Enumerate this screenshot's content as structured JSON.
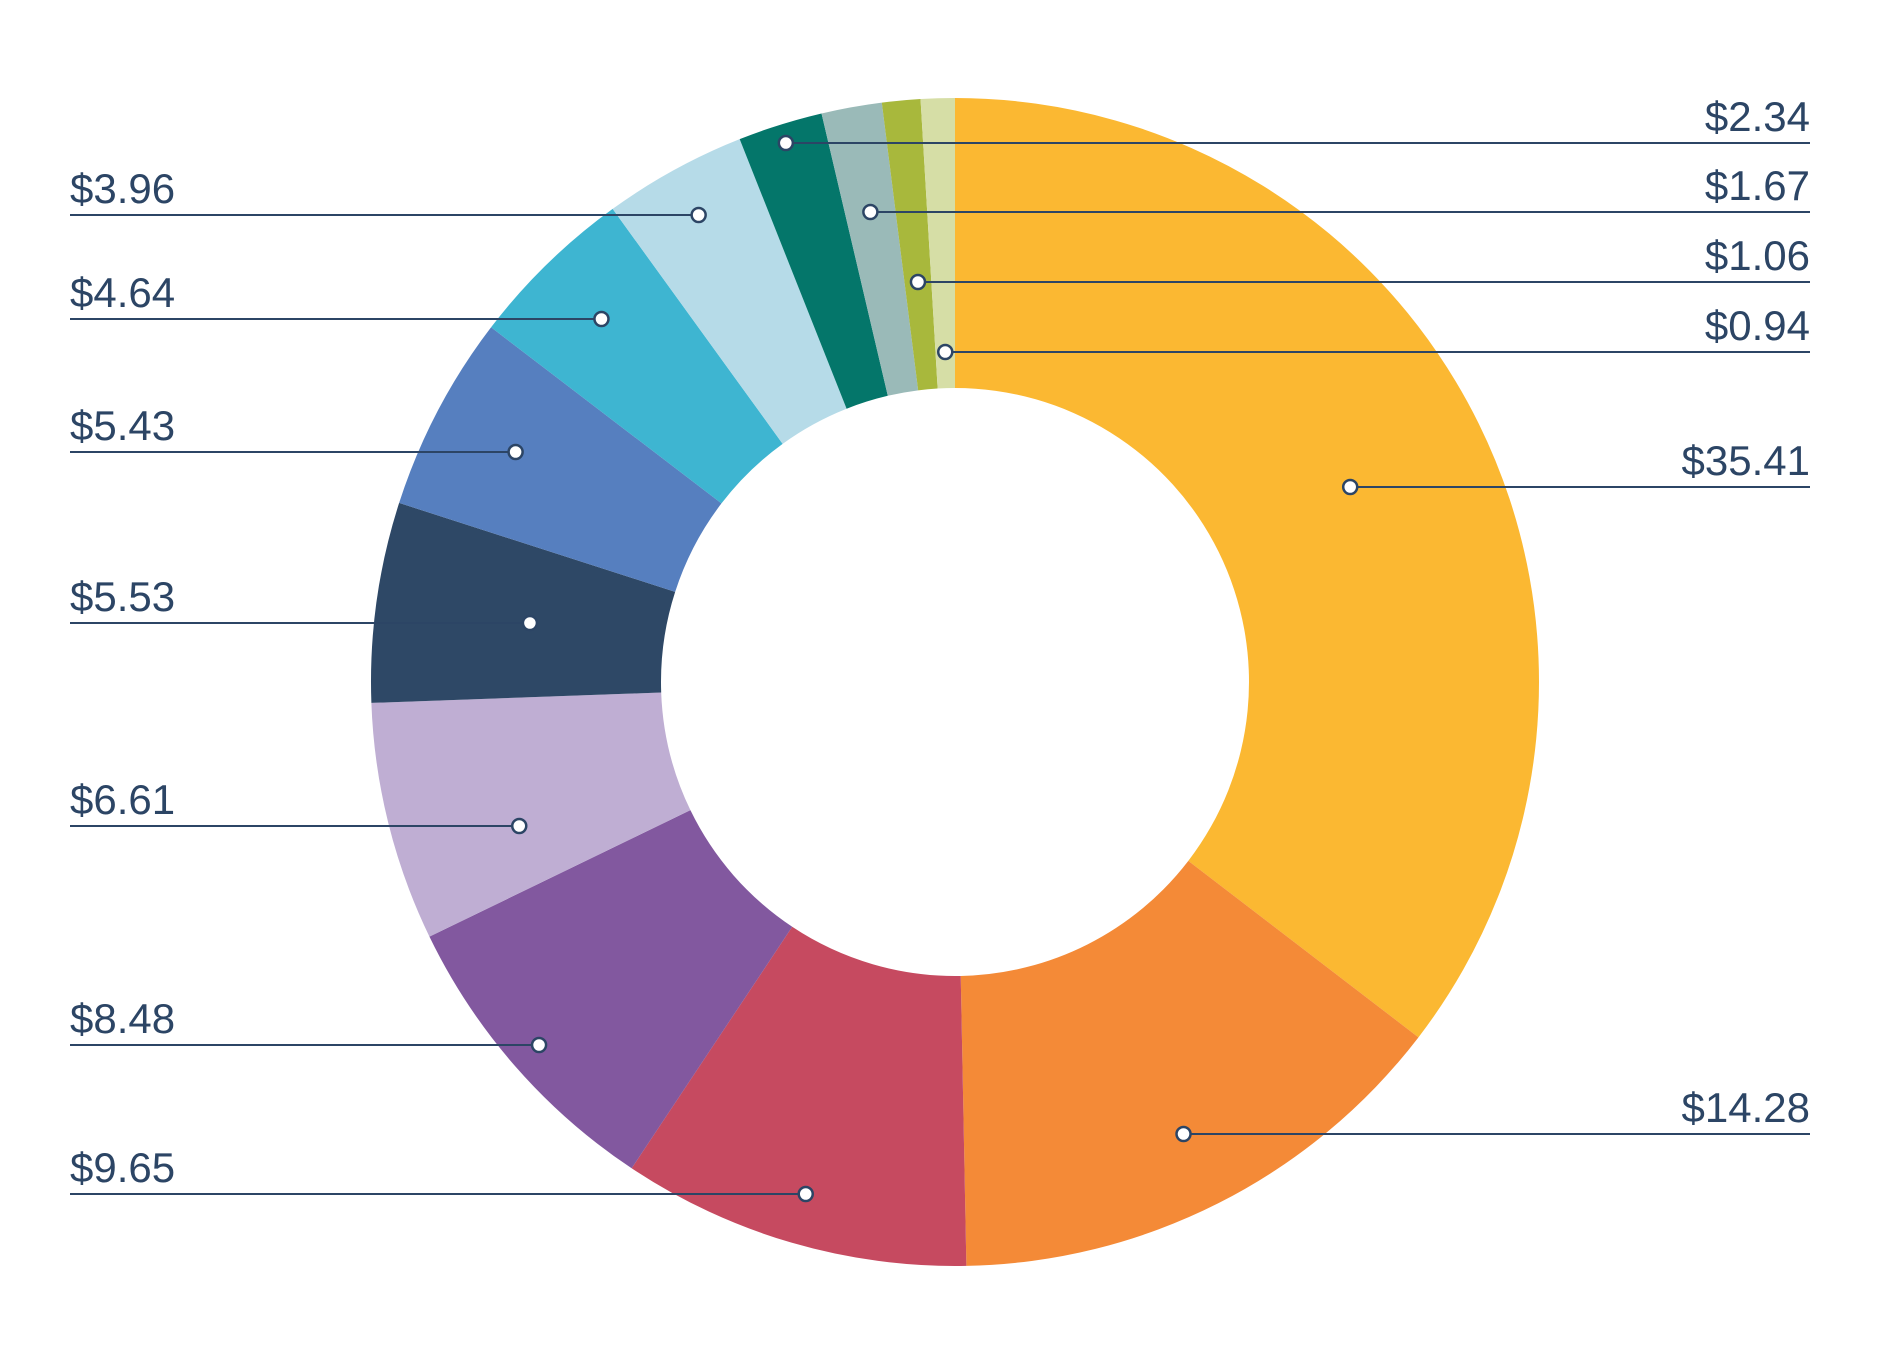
{
  "chart_data": {
    "type": "donut",
    "title": "",
    "segments": [
      {
        "label": "$35.41",
        "value": 35.41,
        "color": "#fbb832"
      },
      {
        "label": "$14.28",
        "value": 14.28,
        "color": "#f48a37"
      },
      {
        "label": "$9.65",
        "value": 9.65,
        "color": "#c64a60"
      },
      {
        "label": "$8.48",
        "value": 8.48,
        "color": "#82589f"
      },
      {
        "label": "$6.61",
        "value": 6.61,
        "color": "#bfaed3"
      },
      {
        "label": "$5.53",
        "value": 5.53,
        "color": "#2e4866"
      },
      {
        "label": "$5.43",
        "value": 5.43,
        "color": "#567fbf"
      },
      {
        "label": "$4.64",
        "value": 4.64,
        "color": "#3eb5d1"
      },
      {
        "label": "$3.96",
        "value": 3.96,
        "color": "#b6dbe8"
      },
      {
        "label": "$2.34",
        "value": 2.34,
        "color": "#04766a"
      },
      {
        "label": "$1.67",
        "value": 1.67,
        "color": "#9abab8"
      },
      {
        "label": "$1.06",
        "value": 1.06,
        "color": "#a8b83c"
      },
      {
        "label": "$0.94",
        "value": 0.94,
        "color": "#d6dea6"
      }
    ],
    "label_color": "#2c4565",
    "legend": "none"
  }
}
